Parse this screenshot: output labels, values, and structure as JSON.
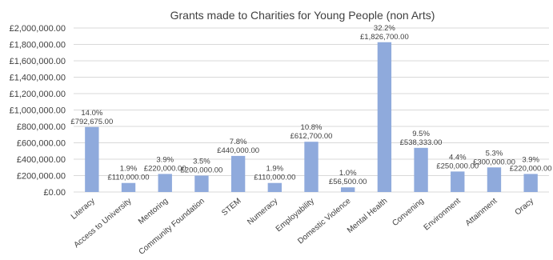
{
  "chart_data": {
    "type": "bar",
    "title": "Grants made to Charities for Young People (non Arts)",
    "xlabel": "",
    "ylabel": "",
    "ylim": [
      0,
      2000000
    ],
    "y_ticks": [
      "£0.00",
      "£200,000.00",
      "£400,000.00",
      "£600,000.00",
      "£800,000.00",
      "£1,000,000.00",
      "£1,200,000.00",
      "£1,400,000.00",
      "£1,600,000.00",
      "£1,800,000.00",
      "£2,000,000.00"
    ],
    "grid": true,
    "legend": "none",
    "bar_color": "#8faadc",
    "categories": [
      "Literacy",
      "Access to University",
      "Mentoring",
      "Community Foundation",
      "STEM",
      "Numeracy",
      "Employability",
      "Domestic Violence",
      "Mental Health",
      "Convening",
      "Environment",
      "Attainment",
      "Oracy"
    ],
    "values": [
      792675,
      110000,
      220000,
      200000,
      440000,
      110000,
      612700,
      56500,
      1826700,
      538333,
      250000,
      300000,
      220000
    ],
    "value_labels": [
      "£792,675.00",
      "£110,000.00",
      "£220,000.00",
      "£200,000.00",
      "£440,000.00",
      "£110,000.00",
      "£612,700.00",
      "£56,500.00",
      "£1,826,700.00",
      "£538,333.00",
      "£250,000.00",
      "£300,000.00",
      "£220,000.00"
    ],
    "percent_labels": [
      "14.0%",
      "1.9%",
      "3.9%",
      "3.5%",
      "7.8%",
      "1.9%",
      "10.8%",
      "1.0%",
      "32.2%",
      "9.5%",
      "4.4%",
      "5.3%",
      "3.9%"
    ]
  }
}
